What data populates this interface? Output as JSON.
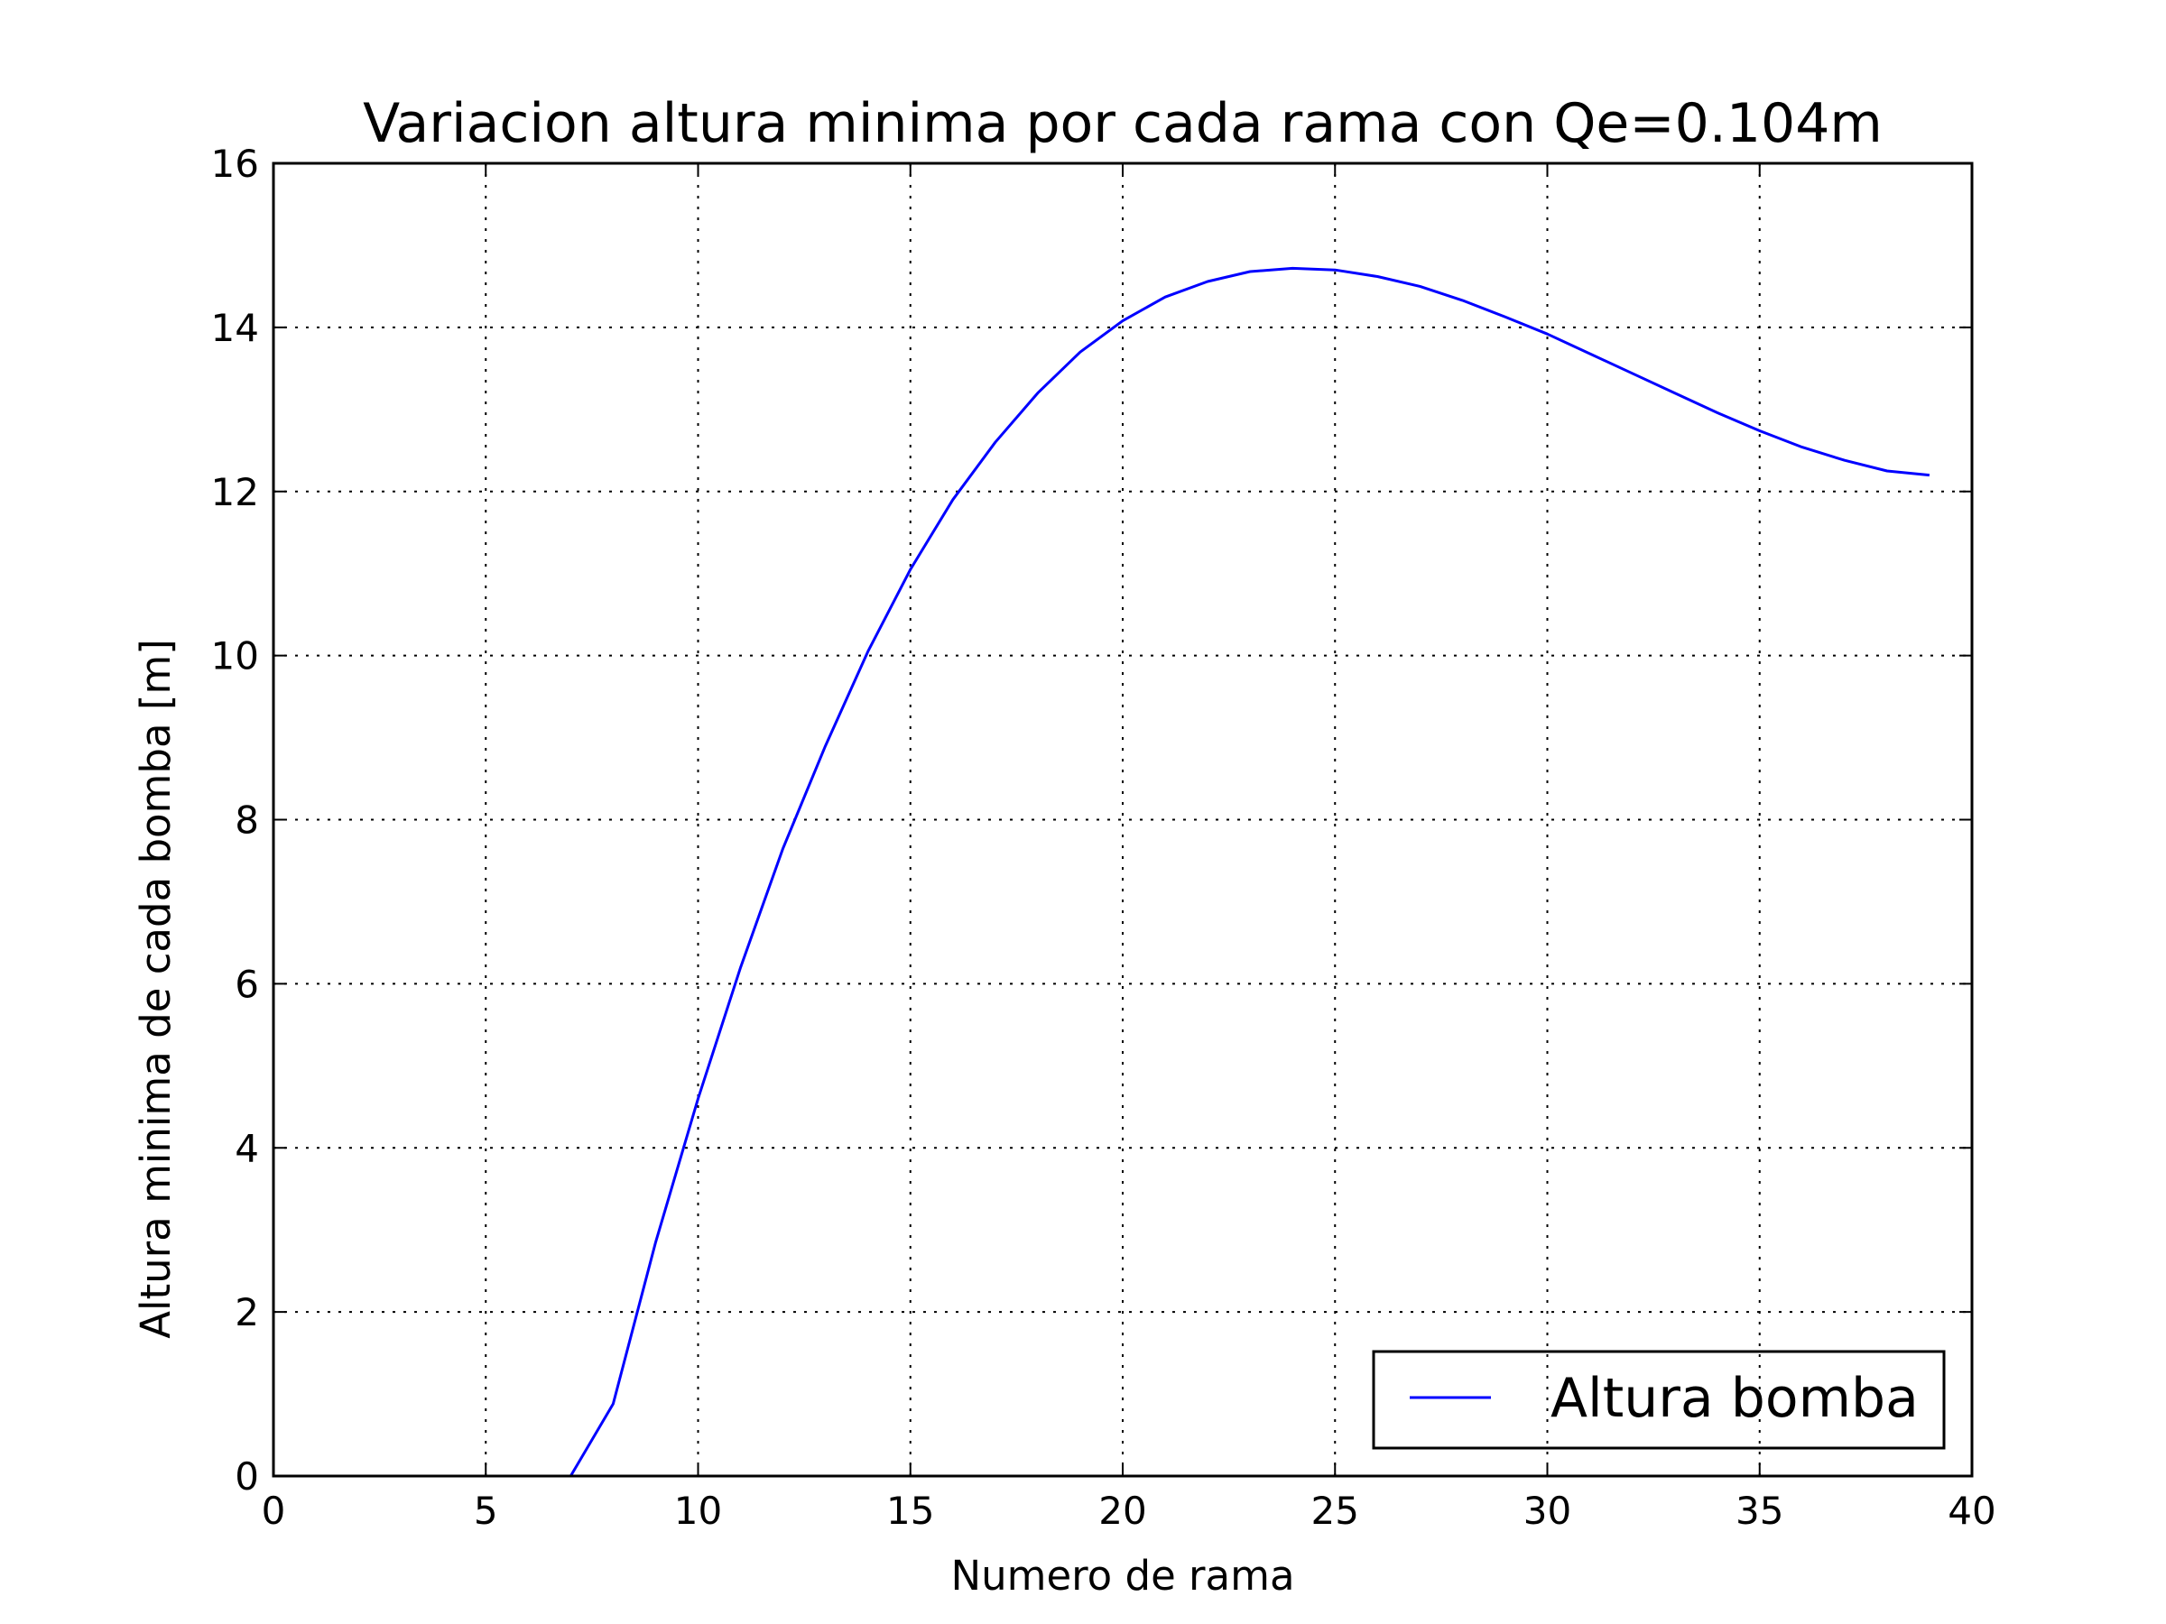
{
  "chart_data": {
    "type": "line",
    "title": "Variacion altura minima por cada rama con Qe=0.104m",
    "xlabel": "Numero de rama",
    "ylabel": "Altura minima de cada bomba [m]",
    "xlim": [
      0,
      40
    ],
    "ylim": [
      0,
      16
    ],
    "xticks": [
      "0",
      "5",
      "10",
      "15",
      "20",
      "25",
      "30",
      "35",
      "40"
    ],
    "yticks": [
      "0",
      "2",
      "4",
      "6",
      "8",
      "10",
      "12",
      "14",
      "16"
    ],
    "grid": true,
    "legend_position": "lower-right",
    "series": [
      {
        "name": "Altura bomba",
        "color": "#0000ff",
        "x": [
          0,
          1,
          2,
          3,
          4,
          5,
          6,
          7,
          8,
          9,
          10,
          11,
          12,
          13,
          14,
          15,
          16,
          17,
          18,
          19,
          20,
          21,
          22,
          23,
          24,
          25,
          26,
          27,
          28,
          29,
          30,
          31,
          32,
          33,
          34,
          35,
          36,
          37,
          38,
          39
        ],
        "y": [
          0,
          0,
          0,
          0,
          0,
          0,
          0,
          0,
          0.88,
          2.85,
          4.6,
          6.2,
          7.65,
          8.9,
          10.05,
          11.05,
          11.9,
          12.6,
          13.2,
          13.7,
          14.08,
          14.37,
          14.56,
          14.68,
          14.72,
          14.7,
          14.62,
          14.5,
          14.33,
          14.13,
          13.92,
          13.68,
          13.44,
          13.2,
          12.96,
          12.74,
          12.54,
          12.38,
          12.25,
          12.2
        ]
      }
    ]
  }
}
